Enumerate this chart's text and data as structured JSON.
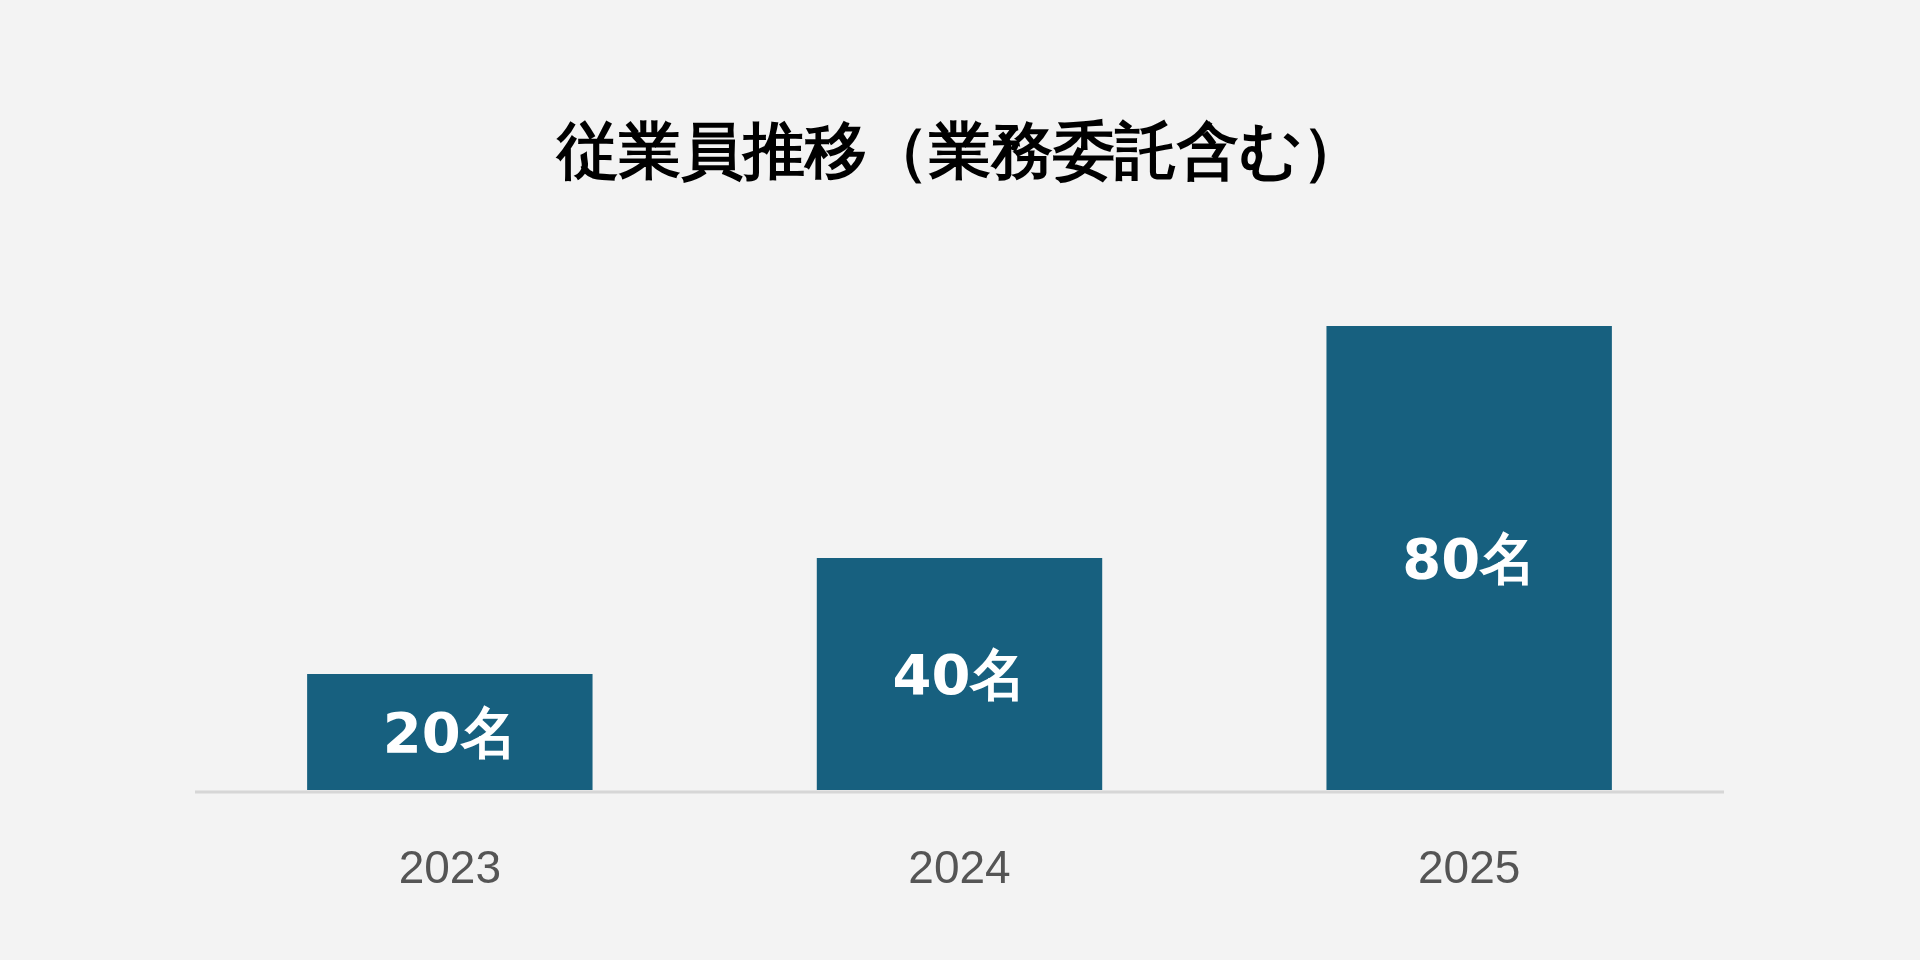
{
  "chart_data": {
    "type": "bar",
    "title": "従業員推移（業務委託含む）",
    "categories": [
      "2023",
      "2024",
      "2025"
    ],
    "values": [
      20,
      40,
      80
    ],
    "value_labels": [
      "20名",
      "40名",
      "80名"
    ],
    "color": "#17607f",
    "grid": false
  }
}
